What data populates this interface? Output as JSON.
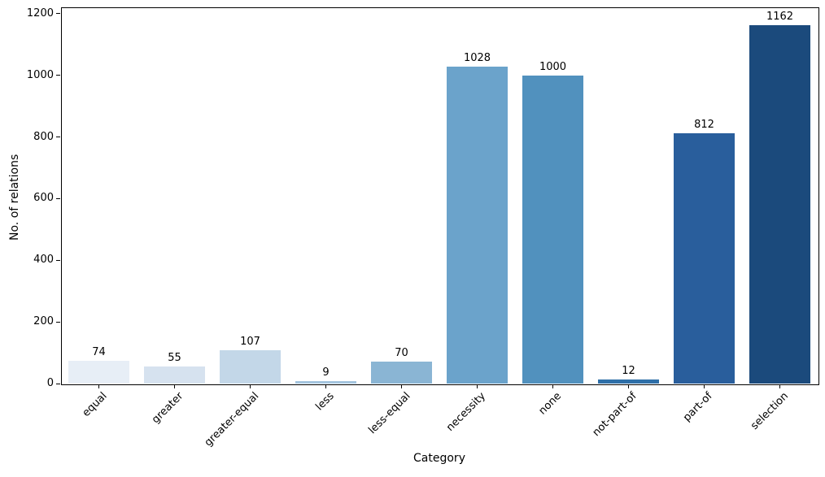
{
  "figure": {
    "background": "#ffffff",
    "text_color": "#000000",
    "spine_color": "#000000"
  },
  "chart_data": {
    "type": "bar",
    "title": "",
    "xlabel": "Category",
    "ylabel": "No. of relations",
    "categories": [
      "equal",
      "greater",
      "greater-equal",
      "less",
      "less-equal",
      "necessity",
      "none",
      "not-part-of",
      "part-of",
      "selection"
    ],
    "values": [
      74,
      55,
      107,
      9,
      70,
      1028,
      1000,
      12,
      812,
      1162
    ],
    "value_labels": [
      "74",
      "55",
      "107",
      "9",
      "70",
      "1028",
      "1000",
      "12",
      "812",
      "1162"
    ],
    "bar_colors": [
      "#e7eef6",
      "#d6e2ef",
      "#c3d7e8",
      "#a3c4de",
      "#8ab5d4",
      "#6ba3cb",
      "#5191be",
      "#2e6fa8",
      "#295e9c",
      "#1b4a7c"
    ],
    "ylim": [
      0,
      1221
    ],
    "yticks": [
      0,
      200,
      400,
      600,
      800,
      1000,
      1200
    ],
    "grid": false,
    "legend": null,
    "x_tick_rotation": 45,
    "bar_rel_width": 0.8
  }
}
